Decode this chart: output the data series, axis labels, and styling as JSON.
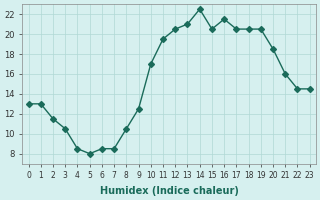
{
  "x": [
    0,
    1,
    2,
    3,
    4,
    5,
    6,
    7,
    8,
    9,
    10,
    11,
    12,
    13,
    14,
    15,
    16,
    17,
    18,
    19,
    20,
    21,
    22,
    23
  ],
  "y": [
    13,
    13,
    11.5,
    10.5,
    8.5,
    8,
    8.5,
    8.5,
    10.5,
    12.5,
    17,
    19.5,
    20.5,
    21,
    22.5,
    20.5,
    21.5,
    20.5,
    20.5,
    20.5,
    18.5,
    16,
    14.5,
    14.5
  ],
  "line_color": "#1a6b5a",
  "marker": "D",
  "marker_size": 3,
  "bg_color": "#d6f0ef",
  "grid_color": "#b0d8d5",
  "xlabel": "Humidex (Indice chaleur)",
  "ylabel": "",
  "title": "",
  "xlim": [
    -0.5,
    23.5
  ],
  "ylim": [
    7,
    23
  ],
  "yticks": [
    8,
    10,
    12,
    14,
    16,
    18,
    20,
    22
  ],
  "xticks": [
    0,
    1,
    2,
    3,
    4,
    5,
    6,
    7,
    8,
    9,
    10,
    11,
    12,
    13,
    14,
    15,
    16,
    17,
    18,
    19,
    20,
    21,
    22,
    23
  ]
}
